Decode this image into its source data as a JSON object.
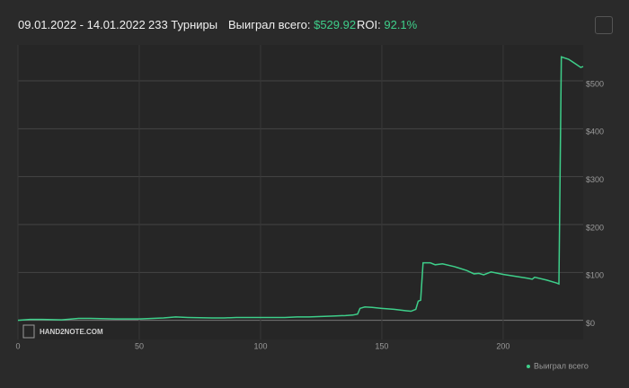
{
  "header": {
    "date_range": "09.01.2022 - 14.01.2022",
    "tournaments": "233 Турниры",
    "won_label": "Выиграл всего:",
    "won_value": "$529.92",
    "roi_label": "ROI:",
    "roi_value": "92.1%"
  },
  "chart_data": {
    "type": "line",
    "watermark": "HAND2NOTE.COM",
    "x": [
      0,
      5,
      10,
      18,
      25,
      30,
      40,
      50,
      60,
      65,
      70,
      80,
      85,
      90,
      100,
      110,
      115,
      120,
      125,
      130,
      135,
      138,
      140,
      141,
      143,
      146,
      150,
      155,
      160,
      162,
      164,
      165,
      166,
      167,
      170,
      172,
      175,
      180,
      185,
      188,
      190,
      192,
      195,
      200,
      205,
      210,
      212,
      213,
      218,
      222,
      223,
      224,
      227,
      230,
      232,
      233
    ],
    "series": [
      {
        "name": "Выиграл всего",
        "color": "#3ecf8a",
        "values": [
          0,
          2,
          2,
          1,
          4,
          4,
          3,
          3,
          5,
          7,
          6,
          5,
          5,
          6,
          6,
          6,
          7,
          7,
          8,
          9,
          10,
          11,
          13,
          25,
          28,
          27,
          25,
          23,
          20,
          19,
          23,
          40,
          42,
          120,
          120,
          116,
          118,
          112,
          104,
          97,
          98,
          95,
          101,
          96,
          92,
          88,
          86,
          90,
          84,
          78,
          76,
          550,
          545,
          535,
          528,
          529.92
        ]
      }
    ],
    "xlim": [
      0,
      233
    ],
    "xticks": [
      0,
      50,
      100,
      150,
      200
    ],
    "ylim": [
      -40,
      575
    ],
    "yticks": [
      {
        "value": 0,
        "label": "$0"
      },
      {
        "value": 100,
        "label": "$100"
      },
      {
        "value": 200,
        "label": "$200"
      },
      {
        "value": 300,
        "label": "$300"
      },
      {
        "value": 400,
        "label": "$400"
      },
      {
        "value": 500,
        "label": "$500"
      }
    ],
    "grid": true
  }
}
